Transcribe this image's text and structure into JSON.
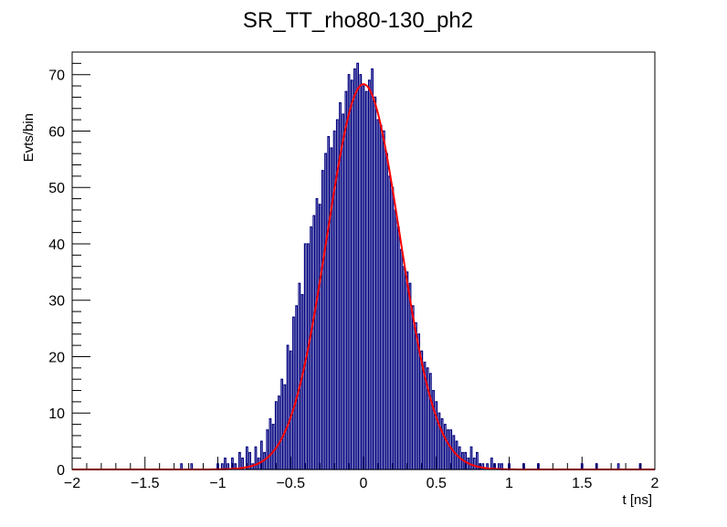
{
  "chart_data": {
    "type": "line",
    "title": "SR_TT_rho80-130_ph2",
    "xlabel": "t [ns]",
    "ylabel": "Evts/bin",
    "xlim": [
      -2,
      2
    ],
    "ylim": [
      0,
      74
    ],
    "x_ticks": [
      "−2",
      "−1.5",
      "−1",
      "−0.5",
      "0",
      "0.5",
      "1",
      "1.5",
      "2"
    ],
    "x_tick_values": [
      -2,
      -1.5,
      -1,
      -0.5,
      0,
      0.5,
      1,
      1.5,
      2
    ],
    "y_ticks": [
      "0",
      "10",
      "20",
      "30",
      "40",
      "50",
      "60",
      "70"
    ],
    "y_tick_values": [
      0,
      10,
      20,
      30,
      40,
      50,
      60,
      70
    ],
    "grid": false,
    "legend": "none",
    "colors": {
      "histogram": "#00007f",
      "fit": "#ff0000",
      "frame": "#000000"
    },
    "series": [
      {
        "name": "",
        "kind": "histogram",
        "bin_width": 0.01,
        "x": [
          -1.25,
          -1.2,
          -1.18,
          -1.1,
          -1.0,
          -0.97,
          -0.95,
          -0.93,
          -0.9,
          -0.88,
          -0.85,
          -0.83,
          -0.8,
          -0.78,
          -0.76,
          -0.74,
          -0.72,
          -0.7,
          -0.68,
          -0.66,
          -0.64,
          -0.62,
          -0.6,
          -0.58,
          -0.56,
          -0.54,
          -0.52,
          -0.5,
          -0.48,
          -0.46,
          -0.44,
          -0.42,
          -0.4,
          -0.38,
          -0.36,
          -0.34,
          -0.32,
          -0.3,
          -0.28,
          -0.26,
          -0.24,
          -0.22,
          -0.2,
          -0.18,
          -0.16,
          -0.14,
          -0.12,
          -0.1,
          -0.08,
          -0.06,
          -0.04,
          -0.02,
          0.0,
          0.02,
          0.04,
          0.06,
          0.08,
          0.1,
          0.12,
          0.14,
          0.16,
          0.18,
          0.2,
          0.22,
          0.24,
          0.26,
          0.28,
          0.3,
          0.32,
          0.34,
          0.36,
          0.38,
          0.4,
          0.42,
          0.44,
          0.46,
          0.48,
          0.5,
          0.52,
          0.54,
          0.56,
          0.58,
          0.6,
          0.62,
          0.64,
          0.66,
          0.68,
          0.7,
          0.72,
          0.74,
          0.76,
          0.78,
          0.8,
          0.82,
          0.85,
          0.88,
          0.9,
          0.93,
          0.95,
          1.0,
          1.05,
          1.1,
          1.2,
          1.3,
          1.4,
          1.5,
          1.6,
          1.75,
          1.9
        ],
        "values": [
          1,
          0,
          1,
          0,
          1,
          1,
          2,
          1,
          2,
          1,
          3,
          2,
          4,
          3,
          1,
          4,
          2,
          5,
          3,
          7,
          9,
          8,
          12,
          13,
          16,
          15,
          22,
          21,
          27,
          29,
          33,
          31,
          40,
          40,
          43,
          45,
          48,
          47,
          53,
          56,
          59,
          57,
          60,
          62,
          65,
          63,
          67,
          70,
          69,
          71,
          72,
          70,
          68,
          67,
          69,
          71,
          66,
          62,
          61,
          60,
          56,
          52,
          50,
          46,
          43,
          39,
          36,
          35,
          33,
          29,
          26,
          24,
          21,
          19,
          18,
          17,
          14,
          12,
          10,
          9,
          8,
          7,
          7,
          6,
          5,
          4,
          3,
          3,
          2,
          4,
          2,
          3,
          1,
          1,
          1,
          2,
          1,
          1,
          1,
          1,
          0,
          1,
          1,
          0,
          0,
          1,
          1,
          1,
          1
        ]
      },
      {
        "name": "",
        "kind": "gaussian-fit",
        "amplitude": 68.3,
        "mean": 0.0,
        "sigma": 0.25
      }
    ]
  }
}
